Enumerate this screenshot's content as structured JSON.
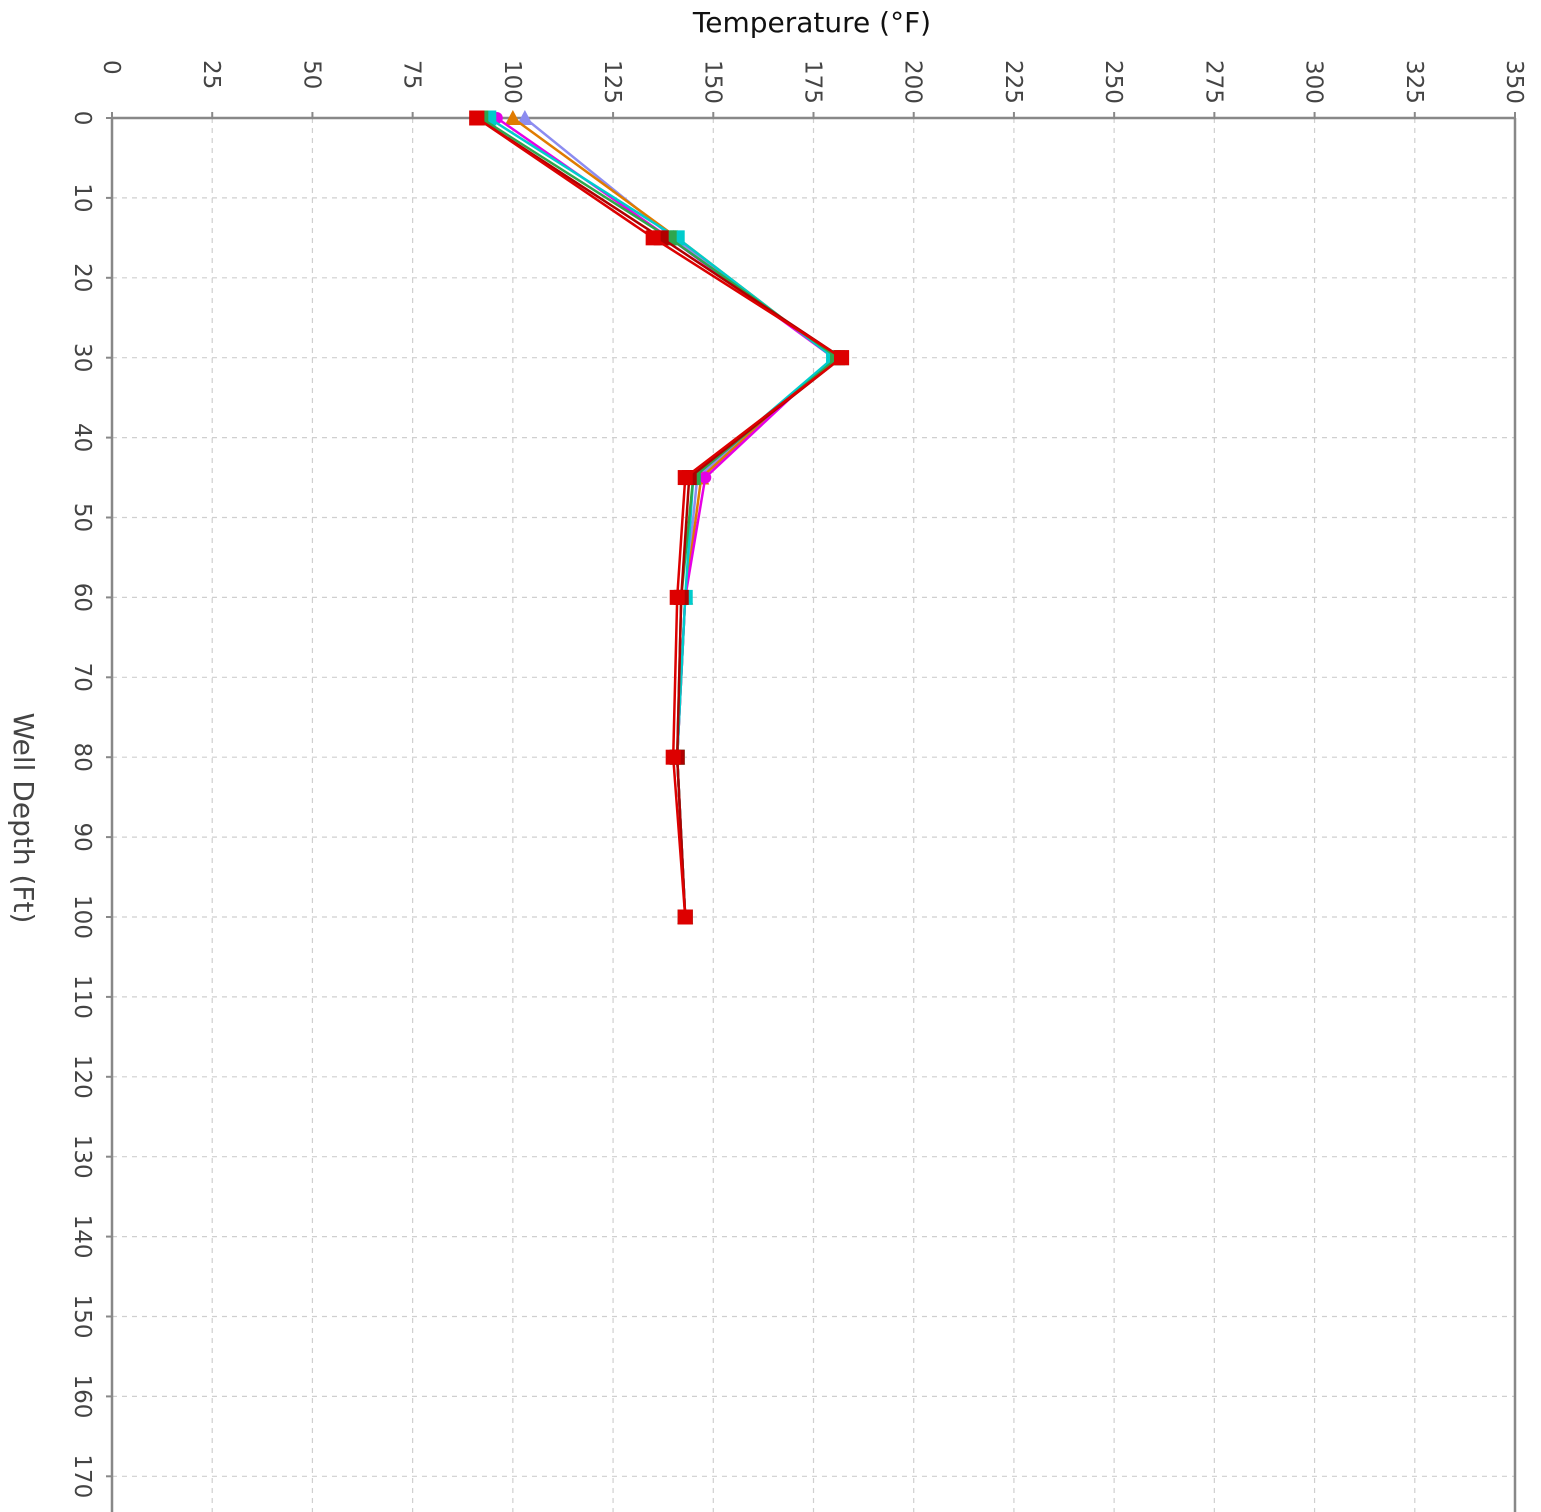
{
  "chart_data": {
    "type": "line",
    "orientation": "depth-profile",
    "xlabel": "Temperature (°F)",
    "ylabel": "Well Depth (Ft)",
    "xlim": [
      0,
      350
    ],
    "ylim": [
      0,
      175
    ],
    "x_axis_position": "top",
    "y_axis_inverted": true,
    "x_ticks": [
      0,
      25,
      50,
      75,
      100,
      125,
      150,
      175,
      200,
      225,
      250,
      275,
      300,
      325,
      350
    ],
    "y_ticks": [
      0,
      10,
      20,
      30,
      40,
      50,
      60,
      70,
      80,
      90,
      100,
      110,
      120,
      130,
      140,
      150,
      160,
      170
    ],
    "grid": true,
    "legend": "none",
    "depths": [
      0,
      15,
      30,
      45,
      60,
      80,
      100
    ],
    "series": [
      {
        "color": "#8C8CF0",
        "marker": "triangle",
        "temperature": [
          103,
          140,
          180,
          146,
          143,
          141,
          143
        ]
      },
      {
        "color": "#E07B00",
        "marker": "triangle",
        "temperature": [
          100,
          141,
          180,
          147,
          143,
          141,
          143
        ]
      },
      {
        "color": "#E600E6",
        "marker": "circle",
        "temperature": [
          96,
          139,
          180,
          148,
          143,
          141,
          143
        ]
      },
      {
        "color": "#00CCCC",
        "marker": "square",
        "temperature": [
          94,
          141,
          180,
          145,
          143,
          141,
          143
        ]
      },
      {
        "color": "#2EA64D",
        "marker": "square",
        "temperature": [
          92,
          139,
          181,
          145,
          142,
          141,
          143
        ]
      },
      {
        "color": "#B00000",
        "marker": "square",
        "temperature": [
          91,
          137,
          182,
          144,
          142,
          141,
          143
        ]
      },
      {
        "color": "#DD0000",
        "marker": "square",
        "temperature": [
          91,
          135,
          182,
          143,
          141,
          140,
          143
        ]
      }
    ]
  }
}
